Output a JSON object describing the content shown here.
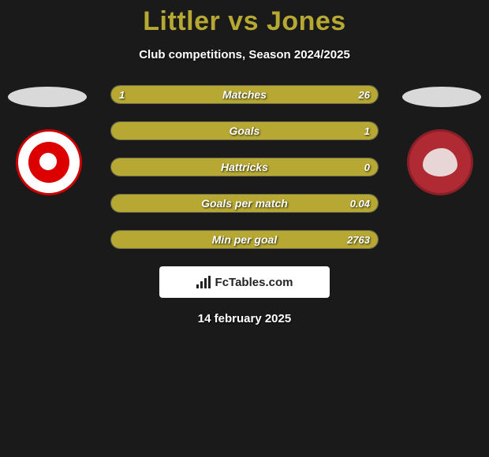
{
  "title": "Littler vs Jones",
  "subtitle": "Club competitions, Season 2024/2025",
  "date": "14 february 2025",
  "site_name": "FcTables.com",
  "colors": {
    "background": "#1a1a1a",
    "accent": "#b6a832",
    "bar_track": "#3a3a2a",
    "bar_border": "#6a6a4a",
    "text": "#ffffff"
  },
  "rows": [
    {
      "label": "Matches",
      "left_val": "1",
      "right_val": "26",
      "left_pct": 4,
      "right_pct": 96
    },
    {
      "label": "Goals",
      "left_val": "",
      "right_val": "1",
      "left_pct": 0,
      "right_pct": 100
    },
    {
      "label": "Hattricks",
      "left_val": "",
      "right_val": "0",
      "left_pct": 0,
      "right_pct": 100
    },
    {
      "label": "Goals per match",
      "left_val": "",
      "right_val": "0.04",
      "left_pct": 0,
      "right_pct": 100
    },
    {
      "label": "Min per goal",
      "left_val": "",
      "right_val": "2763",
      "left_pct": 0,
      "right_pct": 100
    }
  ]
}
